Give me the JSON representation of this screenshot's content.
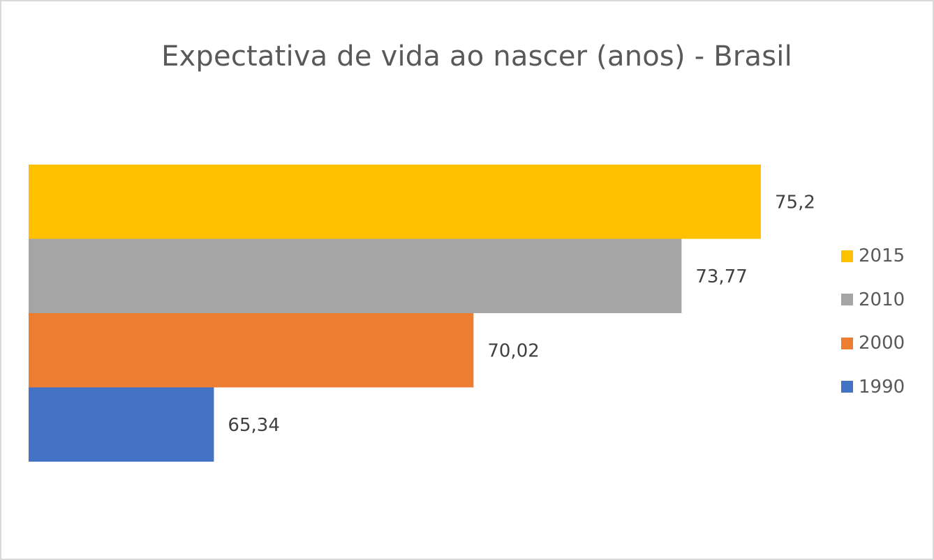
{
  "chart_data": {
    "type": "bar",
    "orientation": "horizontal",
    "title": "Expectativa de vida ao nascer (anos) - Brasil",
    "xlabel": "",
    "ylabel": "",
    "grid": false,
    "legend_position": "right",
    "series": [
      {
        "name": "2015",
        "value": 75.2,
        "label": "75,2",
        "color": "#FFC000"
      },
      {
        "name": "2010",
        "value": 73.77,
        "label": "73,77",
        "color": "#A5A5A5"
      },
      {
        "name": "2000",
        "value": 70.02,
        "label": "70,02",
        "color": "#ED7D31"
      },
      {
        "name": "1990",
        "value": 65.34,
        "label": "65,34",
        "color": "#4472C4"
      }
    ]
  }
}
